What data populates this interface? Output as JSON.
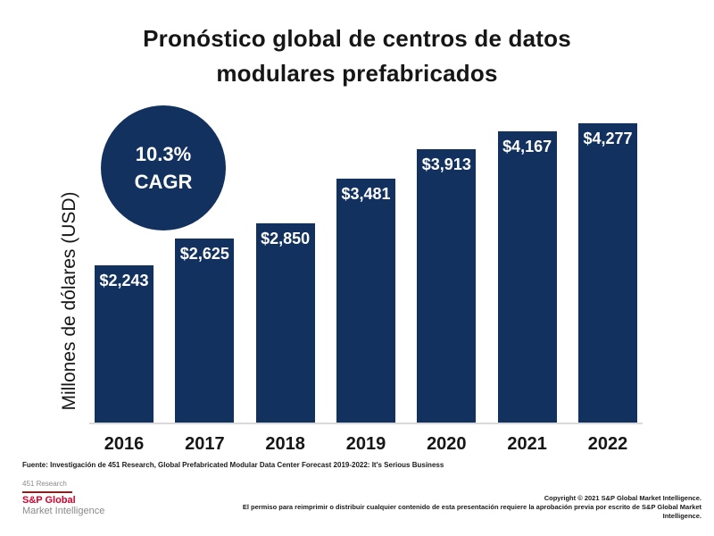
{
  "title": {
    "line1": "Pronóstico global de centros de datos",
    "line2": "modulares prefabricados"
  },
  "cagr_badge": {
    "line1": "10.3%",
    "line2": "CAGR"
  },
  "chart_data": {
    "type": "bar",
    "title": "Pronóstico global de centros de datos modulares prefabricados",
    "categories": [
      "2016",
      "2017",
      "2018",
      "2019",
      "2020",
      "2021",
      "2022"
    ],
    "values": [
      2243,
      2625,
      2850,
      3481,
      3913,
      4167,
      4277
    ],
    "value_labels": [
      "$2,243",
      "$2,625",
      "$2,850",
      "$3,481",
      "$3,913",
      "$4,167",
      "$4,277"
    ],
    "xlabel": "",
    "ylabel": "Millones de dólares (USD)",
    "ylim": [
      0,
      4277
    ],
    "grid": false,
    "legend_position": "none",
    "annotation": "10.3% CAGR",
    "bar_color": "#12315f",
    "label_position": "inside-top"
  },
  "footer": {
    "source": "Fuente: Investigación de 451 Research, Global Prefabricated Modular Data Center Forecast 2019-2022: It's Serious Business",
    "research_brand": "451 Research",
    "brand_name": "S&P Global",
    "brand_sub": "Market Intelligence",
    "copyright_line1": "Copyright © 2021 S&P Global Market Intelligence.",
    "copyright_line2": "El permiso para reimprimir o distribuir cualquier contenido de esta presentación requiere la aprobación previa por escrito de S&P Global Market Intelligence."
  },
  "colors": {
    "navy": "#12315f",
    "brand_red": "#d6002a",
    "divider_red": "#8e1f1f",
    "gray_text": "#8a8a8a",
    "baseline_gray": "#d9d9d9",
    "title_text": "#161616"
  }
}
